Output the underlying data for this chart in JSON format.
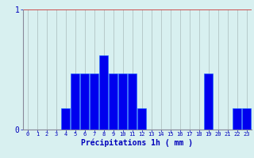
{
  "xlabel": "Précipitations 1h ( mm )",
  "hours": [
    0,
    1,
    2,
    3,
    4,
    5,
    6,
    7,
    8,
    9,
    10,
    11,
    12,
    13,
    14,
    15,
    16,
    17,
    18,
    19,
    20,
    21,
    22,
    23
  ],
  "values": [
    0,
    0,
    0,
    0,
    0.18,
    0.47,
    0.47,
    0.47,
    0.62,
    0.47,
    0.47,
    0.47,
    0.18,
    0,
    0,
    0,
    0,
    0,
    0,
    0.47,
    0,
    0,
    0.18,
    0.18
  ],
  "bar_color": "#0000ee",
  "bar_edge_color": "#1a66ff",
  "background_color": "#d8f0f0",
  "grid_color": "#aabbbb",
  "axis_color": "#888899",
  "text_color": "#0000bb",
  "red_line_color": "#cc3333",
  "ylim": [
    0,
    1
  ],
  "ytick_labels": [
    "0",
    "1"
  ],
  "ytick_vals": [
    0,
    1
  ],
  "xlim": [
    -0.5,
    23.5
  ],
  "xlabel_fontsize": 7,
  "ytick_fontsize": 7,
  "xtick_fontsize": 5
}
